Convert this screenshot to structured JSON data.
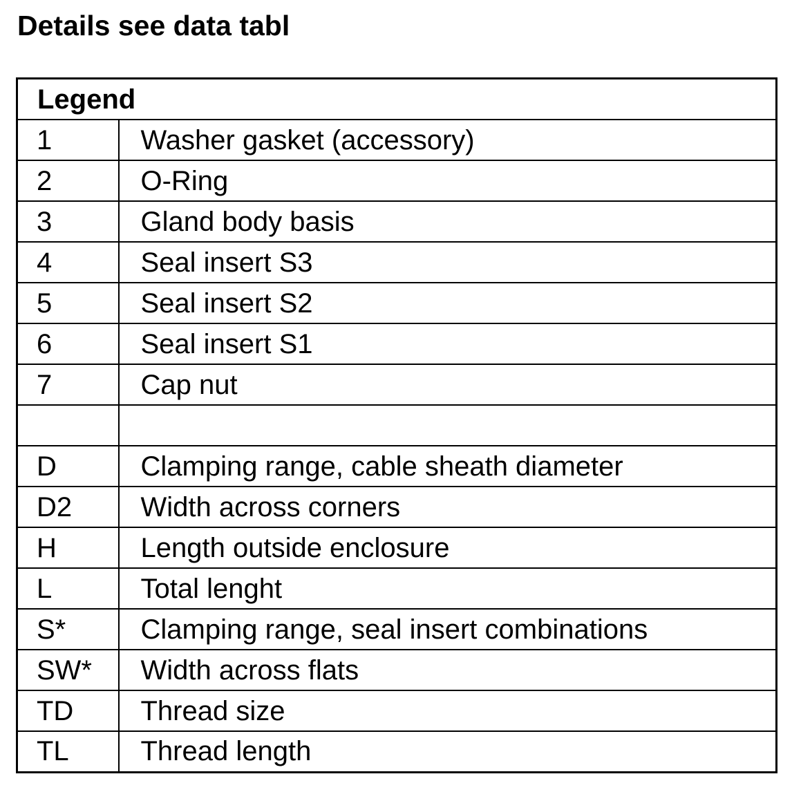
{
  "page": {
    "title": "Details see data tabl"
  },
  "legend_table": {
    "header": "Legend",
    "rows": [
      {
        "key": "1",
        "description": "Washer gasket (accessory)"
      },
      {
        "key": "2",
        "description": "O-Ring"
      },
      {
        "key": "3",
        "description": "Gland body basis"
      },
      {
        "key": "4",
        "description": "Seal insert S3"
      },
      {
        "key": "5",
        "description": "Seal insert S2"
      },
      {
        "key": "6",
        "description": "Seal insert S1"
      },
      {
        "key": "7",
        "description": "Cap nut"
      },
      {
        "key": "",
        "description": ""
      },
      {
        "key": "D",
        "description": "Clamping range, cable sheath diameter"
      },
      {
        "key": "D2",
        "description": "Width across corners"
      },
      {
        "key": "H",
        "description": "Length outside enclosure"
      },
      {
        "key": "L",
        "description": "Total lenght"
      },
      {
        "key": "S*",
        "description": "Clamping range, seal insert combinations"
      },
      {
        "key": "SW*",
        "description": "Width across flats"
      },
      {
        "key": "TD",
        "description": "Thread size"
      },
      {
        "key": "TL",
        "description": "Thread length"
      }
    ],
    "colors": {
      "text": "#000000",
      "border": "#000000",
      "background": "#ffffff"
    }
  }
}
